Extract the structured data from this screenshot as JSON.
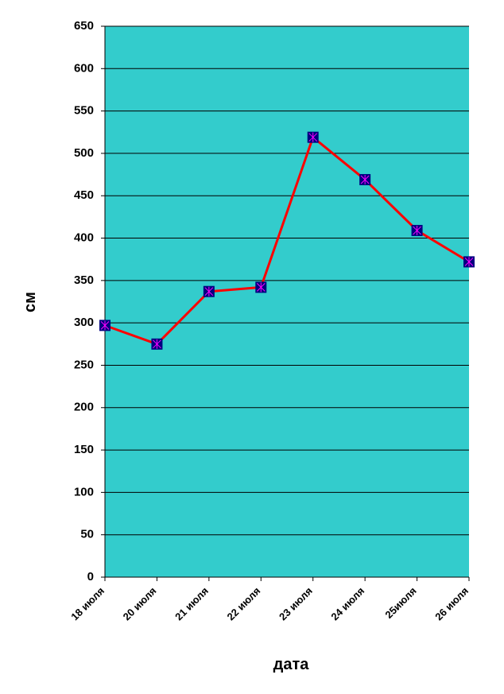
{
  "chart_data": {
    "type": "line",
    "x_label": "дата",
    "y_label": "см",
    "categories": [
      "18 июля",
      "20 июля",
      "21 июля",
      "22 июля",
      "23 июля",
      "24 июля",
      "25июля",
      "26 июля"
    ],
    "series": [
      {
        "color": "#ff0000",
        "values": [
          297,
          275,
          337,
          342,
          519,
          469,
          409,
          372
        ]
      }
    ],
    "ylim": [
      0,
      650
    ],
    "yticks": [
      0,
      50,
      100,
      150,
      200,
      250,
      300,
      350,
      400,
      450,
      500,
      550,
      600,
      650
    ],
    "grid": true,
    "plot_background": "#33cccc",
    "marker_color": "#000080"
  }
}
